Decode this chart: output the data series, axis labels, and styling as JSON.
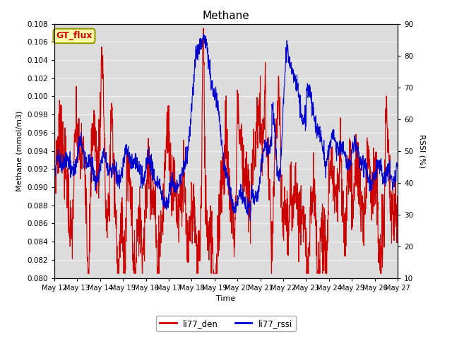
{
  "title": "Methane",
  "xlabel": "Time",
  "ylabel_left": "Methane (mmol/m3)",
  "ylabel_right": "RSSI (%)",
  "x_tick_labels": [
    "May 12",
    "May 13",
    "May 14",
    "May 15",
    "May 16",
    "May 17",
    "May 18",
    "May 19",
    "May 20",
    "May 21",
    "May 22",
    "May 23",
    "May 24",
    "May 25",
    "May 26",
    "May 27"
  ],
  "ylim_left": [
    0.08,
    0.108
  ],
  "ylim_right": [
    10,
    90
  ],
  "yticks_left": [
    0.08,
    0.082,
    0.084,
    0.086,
    0.088,
    0.09,
    0.092,
    0.094,
    0.096,
    0.098,
    0.1,
    0.102,
    0.104,
    0.106,
    0.108
  ],
  "yticks_right": [
    10,
    20,
    30,
    40,
    50,
    60,
    70,
    80,
    90
  ],
  "color_red": "#cc0000",
  "color_blue": "#0000cc",
  "bg_color": "#dcdcdc",
  "legend_label_red": "li77_den",
  "legend_label_blue": "li77_rssi",
  "annotation_text": "GT_flux",
  "annotation_bg": "#ffffaa",
  "annotation_border": "#999900",
  "grid_color": "#f0f0f0",
  "linewidth": 0.8,
  "fig_width": 6.4,
  "fig_height": 4.8,
  "dpi": 100
}
